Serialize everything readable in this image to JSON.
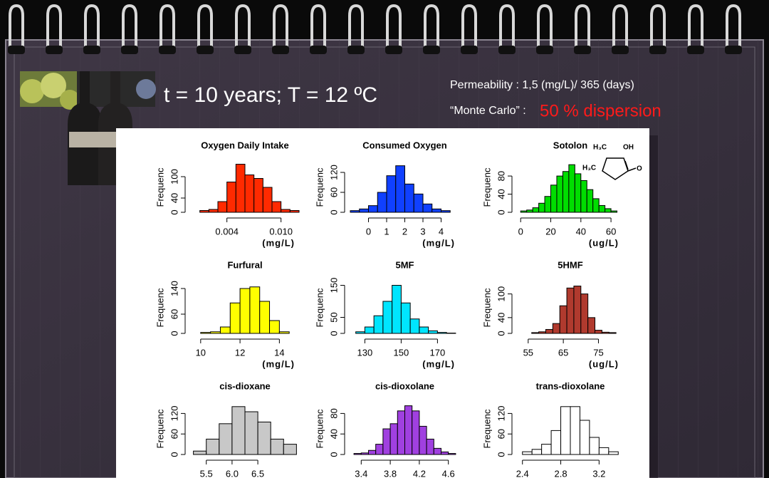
{
  "slide": {
    "heading": "t = 10 years; T = 12 ºC",
    "permeability": "Permeability : 1,5 (mg/L)/ 365 (days)",
    "monte_carlo": "“Monte Carlo” : ",
    "dispersion": "50 % dispersion",
    "sotolon_structure": [
      "H₃C",
      "OH",
      "H₃C",
      "O"
    ]
  },
  "chart_data": [
    {
      "type": "histogram",
      "title": "Oxygen Daily Intake",
      "ylabel": "Frequenc",
      "xlabel": "(mg/L)",
      "color": "#ff2a00",
      "bins": [
        0.001,
        0.002,
        0.003,
        0.004,
        0.005,
        0.006,
        0.007,
        0.008,
        0.009,
        0.01,
        0.011,
        0.012
      ],
      "values": [
        5,
        8,
        30,
        85,
        135,
        105,
        95,
        70,
        30,
        8,
        5
      ],
      "xlim": [
        0,
        0.012
      ],
      "xticks": [
        0.004,
        {
          "value": 0.01,
          "label": "0.010"
        }
      ],
      "ylim": [
        0,
        140
      ],
      "yticks": [
        0,
        40,
        100
      ]
    },
    {
      "type": "histogram",
      "title": "Consumed Oxygen",
      "ylabel": "Frequenc",
      "xlabel": "(mg/L)",
      "color": "#1040ff",
      "bins": [
        -1,
        -0.5,
        0,
        0.5,
        1,
        1.5,
        2,
        2.5,
        3,
        3.5,
        4,
        4.5
      ],
      "values": [
        5,
        10,
        20,
        60,
        110,
        140,
        85,
        55,
        25,
        10,
        5
      ],
      "xlim": [
        -1,
        5
      ],
      "xticks": [
        0,
        1,
        2,
        3,
        4
      ],
      "ylim": [
        0,
        150
      ],
      "yticks": [
        0,
        60,
        120
      ]
    },
    {
      "type": "histogram",
      "title": "Sotolon",
      "ylabel": "Frequenc",
      "xlabel": "(ug/L)",
      "color": "#00dd00",
      "bins": [
        0,
        4,
        8,
        12,
        16,
        20,
        24,
        28,
        32,
        36,
        40,
        44,
        48,
        52,
        56,
        60,
        64
      ],
      "values": [
        3,
        5,
        10,
        20,
        35,
        60,
        80,
        90,
        105,
        85,
        70,
        50,
        30,
        15,
        8,
        3
      ],
      "xlim": [
        -2,
        68
      ],
      "xticks": [
        0,
        20,
        40,
        60
      ],
      "ylim": [
        0,
        110
      ],
      "yticks": [
        0,
        40,
        80
      ]
    },
    {
      "type": "histogram",
      "title": "Furfural",
      "ylabel": "Frequenc",
      "xlabel": "(mg/L)",
      "color": "#ffff00",
      "bins": [
        10,
        10.5,
        11,
        11.5,
        12,
        12.5,
        13,
        13.5,
        14,
        14.5
      ],
      "values": [
        3,
        5,
        20,
        95,
        140,
        145,
        100,
        40,
        5
      ],
      "xlim": [
        9.5,
        15
      ],
      "xticks": [
        10,
        12,
        14
      ],
      "ylim": [
        0,
        160
      ],
      "yticks": [
        0,
        60,
        140
      ]
    },
    {
      "type": "histogram",
      "title": "5MF",
      "ylabel": "Frequenc",
      "xlabel": "(mg/L)",
      "color": "#00e5ff",
      "bins": [
        125,
        130,
        135,
        140,
        145,
        150,
        155,
        160,
        165,
        170,
        175,
        180
      ],
      "values": [
        5,
        20,
        55,
        100,
        150,
        95,
        45,
        20,
        8,
        3,
        1
      ],
      "xlim": [
        122,
        182
      ],
      "xticks": [
        130,
        150,
        170
      ],
      "ylim": [
        0,
        160
      ],
      "yticks": [
        0,
        50,
        150
      ]
    },
    {
      "type": "histogram",
      "title": "5HMF",
      "ylabel": "Frequenc",
      "xlabel": "(ug/L)",
      "color": "#b03a2e",
      "bins": [
        56,
        58,
        60,
        62,
        64,
        66,
        68,
        70,
        72,
        74,
        76,
        78,
        80
      ],
      "values": [
        2,
        4,
        10,
        25,
        70,
        115,
        120,
        100,
        40,
        8,
        3,
        2
      ],
      "xlim": [
        52,
        82
      ],
      "xticks": [
        55,
        65,
        75
      ],
      "ylim": [
        0,
        130
      ],
      "yticks": [
        0,
        40,
        100
      ]
    },
    {
      "type": "histogram",
      "title": "cis-dioxane",
      "ylabel": "Frequenc",
      "color": "#c8c8c8",
      "bins": [
        5.25,
        5.5,
        5.75,
        6.0,
        6.25,
        6.5,
        6.75,
        7.0,
        7.25
      ],
      "values": [
        10,
        45,
        90,
        140,
        125,
        95,
        45,
        30
      ],
      "xlim": [
        5.2,
        7.3
      ],
      "xticks": [
        5.5,
        {
          "value": 6,
          "label": "6.0"
        },
        6.5
      ],
      "ylim": [
        0,
        150
      ],
      "yticks": [
        0,
        60,
        120
      ]
    },
    {
      "type": "histogram",
      "title": "cis-dioxolane",
      "ylabel": "Frequenc",
      "color": "#a040e0",
      "bins": [
        3.3,
        3.4,
        3.5,
        3.6,
        3.7,
        3.8,
        3.9,
        4.0,
        4.1,
        4.2,
        4.3,
        4.4,
        4.5,
        4.6,
        4.7
      ],
      "values": [
        2,
        3,
        8,
        20,
        50,
        60,
        85,
        95,
        85,
        55,
        30,
        12,
        5,
        2
      ],
      "xlim": [
        3.25,
        4.75
      ],
      "xticks": [
        3.4,
        3.8,
        4.2,
        4.6
      ],
      "ylim": [
        0,
        100
      ],
      "yticks": [
        0,
        40,
        80
      ]
    },
    {
      "type": "histogram",
      "title": "trans-dioxolane",
      "ylabel": "Frequenc",
      "color": "#ffffff",
      "bins": [
        2.4,
        2.5,
        2.6,
        2.7,
        2.8,
        2.9,
        3.0,
        3.1,
        3.2,
        3.3,
        3.4
      ],
      "values": [
        8,
        15,
        30,
        70,
        140,
        140,
        100,
        50,
        20,
        8
      ],
      "xlim": [
        2.35,
        3.45
      ],
      "xticks": [
        2.4,
        2.8,
        3.2
      ],
      "ylim": [
        0,
        150
      ],
      "yticks": [
        0,
        60,
        120
      ]
    }
  ]
}
